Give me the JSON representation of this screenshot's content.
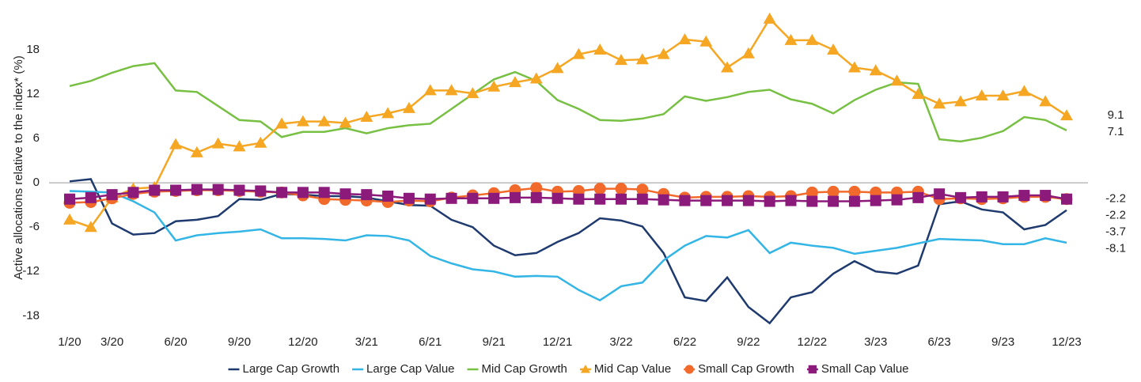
{
  "chart_data": {
    "type": "line",
    "y_label": "Active allocations relative to the index* (%)",
    "categories": [
      "1/20",
      null,
      "3/20",
      null,
      null,
      "6/20",
      null,
      null,
      "9/20",
      null,
      null,
      "12/20",
      null,
      null,
      "3/21",
      null,
      null,
      "6/21",
      null,
      null,
      "9/21",
      null,
      null,
      "12/21",
      null,
      null,
      "3/22",
      null,
      null,
      "6/22",
      null,
      null,
      "9/22",
      null,
      null,
      "12/22",
      null,
      null,
      "3/23",
      null,
      null,
      "6/23",
      null,
      null,
      "9/23",
      null,
      null,
      "12/23"
    ],
    "ylim": [
      -20,
      24
    ],
    "yticks": [
      -18,
      -12,
      -6,
      0,
      6,
      12,
      18
    ],
    "series": [
      {
        "name": "Large Cap Growth",
        "color": "#1f3a6e",
        "marker": null,
        "values": [
          0.2,
          0.5,
          -5.5,
          -7,
          -6.8,
          -5.2,
          -5,
          -4.5,
          -2.2,
          -2.3,
          -1.5,
          -1.6,
          -1.8,
          -1.8,
          -2,
          -2.5,
          -3,
          -3.1,
          -5,
          -6,
          -8.5,
          -9.8,
          -9.5,
          -8,
          -6.8,
          -4.8,
          -5.1,
          -5.9,
          -9.5,
          -15.5,
          -16,
          -12.8,
          -16.8,
          -19,
          -15.5,
          -14.8,
          -12.3,
          -10.6,
          -12,
          -12.3,
          -11.2,
          -2.9,
          -2.5,
          -3.6,
          -4,
          -6.3,
          -5.7,
          -3.7
        ]
      },
      {
        "name": "Large Cap Value",
        "color": "#33b5e5",
        "marker": null,
        "values": [
          -1.1,
          -1.2,
          -1.3,
          -2.5,
          -4,
          -7.8,
          -7.1,
          -6.8,
          -6.6,
          -6.3,
          -7.5,
          -7.5,
          -7.6,
          -7.8,
          -7.1,
          -7.2,
          -7.8,
          -9.9,
          -10.9,
          -11.7,
          -12,
          -12.7,
          -12.6,
          -12.7,
          -14.5,
          -15.9,
          -14,
          -13.5,
          -10.5,
          -8.5,
          -7.2,
          -7.4,
          -6.4,
          -9.5,
          -8.1,
          -8.5,
          -8.8,
          -9.6,
          -9.2,
          -8.8,
          -8.2,
          -7.6,
          -7.7,
          -7.8,
          -8.3,
          -8.3,
          -7.5,
          -8.1
        ]
      },
      {
        "name": "Mid Cap Growth",
        "color": "#77c043",
        "marker": null,
        "values": [
          13.1,
          13.8,
          14.9,
          15.8,
          16.2,
          12.5,
          12.3,
          10.4,
          8.5,
          8.3,
          6.2,
          6.9,
          6.9,
          7.4,
          6.7,
          7.4,
          7.8,
          8.0,
          10.0,
          12.0,
          14.0,
          15.0,
          13.8,
          11.2,
          10.0,
          8.5,
          8.4,
          8.7,
          9.3,
          11.7,
          11.1,
          11.6,
          12.3,
          12.6,
          11.3,
          10.7,
          9.4,
          11.2,
          12.6,
          13.6,
          13.4,
          5.9,
          5.6,
          6.1,
          7.0,
          8.9,
          8.5,
          7.1
        ]
      },
      {
        "name": "Mid Cap Value",
        "color": "#f5a623",
        "marker": "triangle",
        "values": [
          -5,
          -6,
          -2,
          -0.8,
          -0.6,
          5.2,
          4.1,
          5.3,
          4.9,
          5.4,
          8,
          8.3,
          8.3,
          8.1,
          8.9,
          9.4,
          10.1,
          12.5,
          12.5,
          12.1,
          13.0,
          13.6,
          14.1,
          15.5,
          17.4,
          18.0,
          16.6,
          16.7,
          17.4,
          19.4,
          19.1,
          15.6,
          17.5,
          22.2,
          19.3,
          19.3,
          18.0,
          15.6,
          15.2,
          13.8,
          12.0,
          10.7,
          11.0,
          11.8,
          11.8,
          12.4,
          11.0,
          9.1
        ]
      },
      {
        "name": "Small Cap Growth",
        "color": "#f26a2b",
        "marker": "circle",
        "values": [
          -2.7,
          -2.6,
          -2.1,
          -1.5,
          -1.2,
          -1.1,
          -1,
          -1,
          -1.1,
          -1.2,
          -1.3,
          -1.7,
          -2.2,
          -2.3,
          -2.4,
          -2.6,
          -2.4,
          -2.5,
          -2,
          -1.7,
          -1.4,
          -1,
          -0.7,
          -1.2,
          -1.1,
          -0.8,
          -0.8,
          -0.9,
          -1.5,
          -2,
          -1.9,
          -1.9,
          -1.8,
          -1.9,
          -1.8,
          -1.3,
          -1.2,
          -1.2,
          -1.3,
          -1.3,
          -1.2,
          -2.2,
          -2.1,
          -2.2,
          -2.1,
          -1.9,
          -1.9,
          -2.2
        ]
      },
      {
        "name": "Small Cap Value",
        "color": "#8b1a7a",
        "marker": "square",
        "values": [
          -2.2,
          -2.0,
          -1.6,
          -1.3,
          -1.0,
          -1.0,
          -0.9,
          -0.9,
          -1.0,
          -1.1,
          -1.3,
          -1.3,
          -1.3,
          -1.5,
          -1.6,
          -1.8,
          -2.1,
          -2.2,
          -2.1,
          -2.1,
          -2.1,
          -2.0,
          -2.0,
          -2.1,
          -2.2,
          -2.2,
          -2.2,
          -2.2,
          -2.3,
          -2.4,
          -2.4,
          -2.4,
          -2.4,
          -2.5,
          -2.4,
          -2.5,
          -2.5,
          -2.5,
          -2.4,
          -2.3,
          -2.0,
          -1.5,
          -2.0,
          -1.9,
          -1.9,
          -1.7,
          -1.7,
          -2.2
        ]
      }
    ]
  }
}
